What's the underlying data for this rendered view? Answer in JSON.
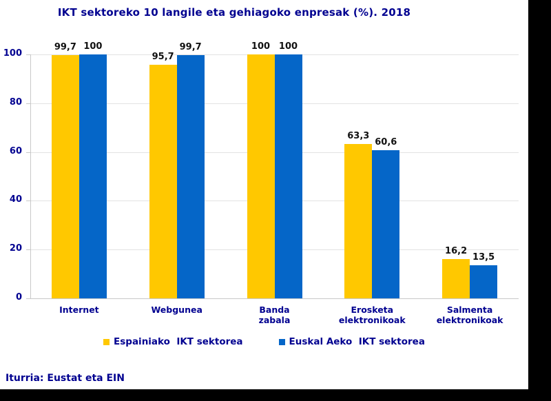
{
  "title": "IKT sektoreko 10 langile eta gehiagoko enpresak (%). 2018",
  "source": "Iturria: Eustat eta EIN",
  "colors": {
    "series1": "#FFC800",
    "series2": "#0566C8",
    "text_navy": "#000090",
    "value_label": "#111111",
    "gridline": "#E2E2E2",
    "axis": "#C8C8C8",
    "page_background": "#ffffff",
    "outer_background": "#000000"
  },
  "chart_data": {
    "type": "bar",
    "title": "IKT sektoreko 10 langile eta gehiagoko enpresak (%). 2018",
    "categories": [
      "Internet",
      "Webgunea",
      "Banda\nzabala",
      "Erosketa\nelektronikoak",
      "Salmenta\nelektronikoak"
    ],
    "series": [
      {
        "name": "Espainiako  IKT sektorea",
        "color": "#FFC800",
        "values": [
          99.7,
          95.7,
          100,
          63.3,
          16.2
        ],
        "labels": [
          "99,7",
          "95,7",
          "100",
          "63,3",
          "16,2"
        ]
      },
      {
        "name": "Euskal Aeko  IKT sektorea",
        "color": "#0566C8",
        "values": [
          100,
          99.7,
          100,
          60.6,
          13.5
        ],
        "labels": [
          "100",
          "99,7",
          "100",
          "60,6",
          "13,5"
        ]
      }
    ],
    "xlabel": "",
    "ylabel": "",
    "ylim": [
      0,
      100
    ],
    "yticks": [
      0,
      20,
      40,
      60,
      80,
      100
    ],
    "ytick_labels": [
      "0",
      "20",
      "40",
      "60",
      "80",
      "100"
    ],
    "grid": true,
    "legend_position": "bottom"
  }
}
